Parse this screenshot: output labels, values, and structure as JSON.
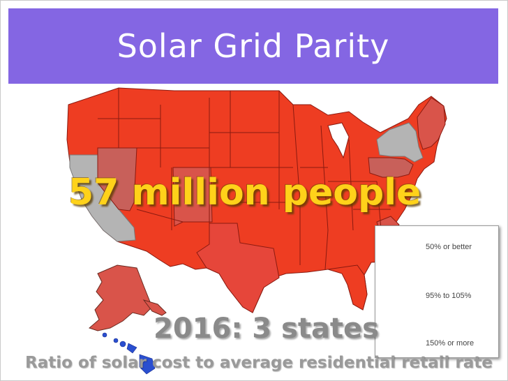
{
  "slide": {
    "title": "Solar Grid Parity",
    "headline": "57 million people",
    "subhead": "2016: 3 states",
    "caption": "Ratio of solar cost to average residential retail rate"
  },
  "legend": {
    "top_label": "50% or better",
    "mid_label": "95% to 105%",
    "bottom_label": "150% or more",
    "top_color": "#5040f0",
    "mid_color": "#909090",
    "bottom_color": "#f03a1a"
  },
  "colors": {
    "title_bar": "#8466e3",
    "state_default": "#ee3d22",
    "state_near_parity": "#d9544a",
    "state_grey": "#b4b4b4",
    "state_mid": "#c8605a",
    "hawaii": "#2a4fd0",
    "headline_text": "#ffd21a"
  },
  "map": {
    "highlighted_states": [
      "California",
      "New York",
      "Hawaii"
    ]
  }
}
